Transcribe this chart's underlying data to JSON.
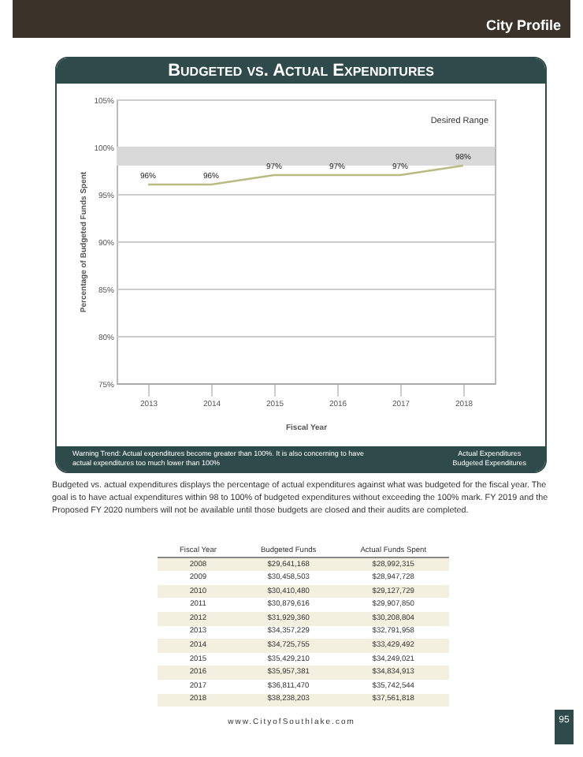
{
  "chart_data": {
    "type": "line",
    "title": "Budgeted vs. Actual Expenditures",
    "xlabel": "Fiscal Year",
    "ylabel": "Percentage of Budgeted Funds Spent",
    "categories": [
      "2013",
      "2014",
      "2015",
      "2016",
      "2017",
      "2018"
    ],
    "series": [
      {
        "color": "#b9bb80",
        "values": [
          96,
          96,
          97,
          97,
          97,
          98
        ]
      }
    ],
    "ylim": [
      75,
      105
    ],
    "yticks": [
      {
        "value": 75,
        "label": "75%"
      },
      {
        "value": 80,
        "label": "80%"
      },
      {
        "value": 85,
        "label": "85%"
      },
      {
        "value": 90,
        "label": "90%"
      },
      {
        "value": 95,
        "label": "95%"
      },
      {
        "value": 100,
        "label": "100%"
      },
      {
        "value": 105,
        "label": "105%"
      }
    ],
    "value_labels": [
      "96%",
      "96%",
      "97%",
      "97%",
      "97%",
      "98%"
    ],
    "bands": [
      {
        "axis": "y",
        "from": 98,
        "to": 100,
        "label": "Desired Range",
        "color": "#d9d9d9"
      }
    ],
    "grid": "y",
    "marker": "none",
    "line_style": "solid",
    "annotations": [
      "City Profile",
      "Warning Trend:  Actual expenditures become greater than 100%. It is also concerning to have actual expenditures too much lower than 100%",
      "Actual Expenditures\nBudgeted Expenditures",
      "Budgeted vs. actual expenditures displays the percentage of actual expenditures against what was budgeted for the fiscal year. The goal is to have actual expenditures within 98 to 100% of budgeted expenditures without exceeding the 100% mark.  FY 2019 and the Proposed FY 2020 numbers will not be available until those budgets are closed and their audits are completed.",
      "Fiscal Year\tBudgeted Funds\tActual Funds Spent",
      "2008\t$29,641,168\t$28,992,315",
      "2009\t$30,458,503\t$28,947,728",
      "2010\t$30,410,480\t$29,127,729",
      "2011\t$30,879,616\t$29,907,850",
      "2012\t$31,929,360\t$30,208,804",
      "2013\t$34,357,229\t$32,791,958",
      "2014\t$34,725,755\t$33,429,492",
      "2015\t$35,429,210\t$34,249,021",
      "2016\t$35,957,381\t$34,834,913",
      "2017\t$36,811,470\t$35,742,544",
      "2018\t$38,238,203\t$37,561,818",
      "www.CityofSouthlake.com",
      "95"
    ]
  }
}
